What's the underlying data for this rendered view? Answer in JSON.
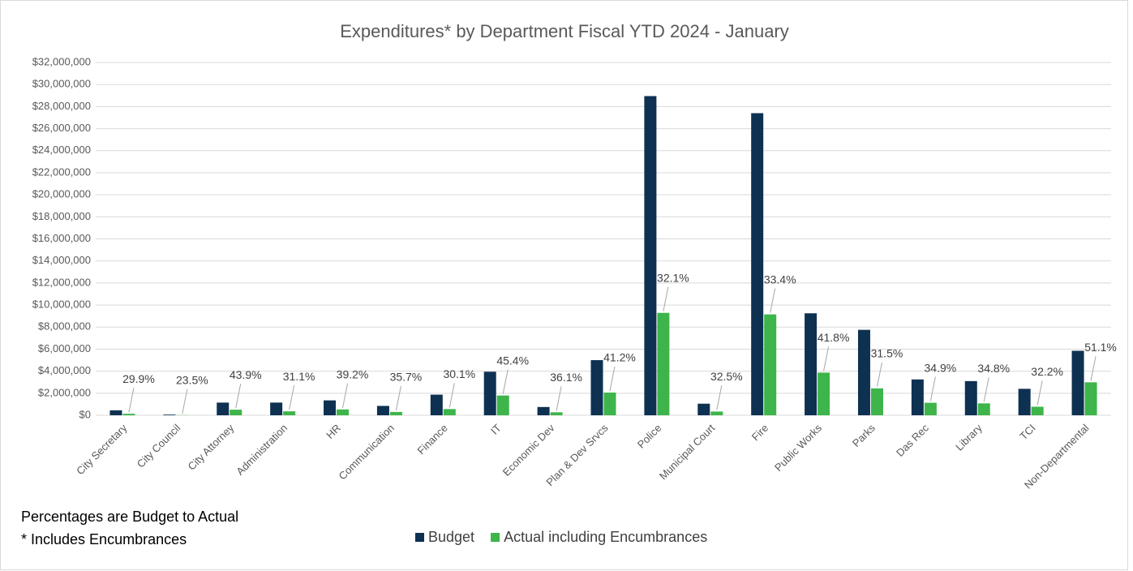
{
  "chart_data": {
    "type": "bar",
    "title": "Expenditures* by Department Fiscal YTD  2024 - January",
    "categories": [
      "City Secretary",
      "City Council",
      "City Attorney",
      "Administration",
      "HR",
      "Communication",
      "Finance",
      "IT",
      "Economic Dev",
      "Plan & Dev Srvcs",
      "Police",
      "Municipal Court",
      "Fire",
      "Public Works",
      "Parks",
      "Das Rec",
      "Library",
      "TCI",
      "Non-Departmental"
    ],
    "series": [
      {
        "name": "Budget",
        "color": "#0e3152",
        "values": [
          450000,
          60000,
          1150000,
          1150000,
          1350000,
          850000,
          1870000,
          3950000,
          750000,
          5000000,
          28950000,
          1050000,
          27400000,
          9250000,
          7750000,
          3250000,
          3100000,
          2400000,
          5850000
        ]
      },
      {
        "name": "Actual including Encumbrances",
        "color": "#3db54a",
        "values": [
          135000,
          14000,
          505000,
          358000,
          530000,
          303000,
          563000,
          1793000,
          271000,
          2060000,
          9290000,
          341000,
          9150000,
          3870000,
          2440000,
          1134000,
          1080000,
          773000,
          2990000
        ],
        "data_labels": [
          "29.9%",
          "23.5%",
          "43.9%",
          "31.1%",
          "39.2%",
          "35.7%",
          "30.1%",
          "45.4%",
          "36.1%",
          "41.2%",
          "32.1%",
          "32.5%",
          "33.4%",
          "41.8%",
          "31.5%",
          "34.9%",
          "34.8%",
          "32.2%",
          "51.1%"
        ]
      }
    ],
    "ylim": [
      0,
      32000000
    ],
    "yticks": [
      {
        "value": 0,
        "label": "$0"
      },
      {
        "value": 2000000,
        "label": "$2,000,000"
      },
      {
        "value": 4000000,
        "label": "$4,000,000"
      },
      {
        "value": 6000000,
        "label": "$6,000,000"
      },
      {
        "value": 8000000,
        "label": "$8,000,000"
      },
      {
        "value": 10000000,
        "label": "$10,000,000"
      },
      {
        "value": 12000000,
        "label": "$12,000,000"
      },
      {
        "value": 14000000,
        "label": "$14,000,000"
      },
      {
        "value": 16000000,
        "label": "$16,000,000"
      },
      {
        "value": 18000000,
        "label": "$18,000,000"
      },
      {
        "value": 20000000,
        "label": "$20,000,000"
      },
      {
        "value": 22000000,
        "label": "$22,000,000"
      },
      {
        "value": 24000000,
        "label": "$24,000,000"
      },
      {
        "value": 26000000,
        "label": "$26,000,000"
      },
      {
        "value": 28000000,
        "label": "$28,000,000"
      },
      {
        "value": 30000000,
        "label": "$30,000,000"
      },
      {
        "value": 32000000,
        "label": "$32,000,000"
      }
    ],
    "grid": true,
    "legend": "bottom",
    "annotations": [
      "Percentages are Budget to Actual",
      "* Includes Encumbrances"
    ]
  }
}
